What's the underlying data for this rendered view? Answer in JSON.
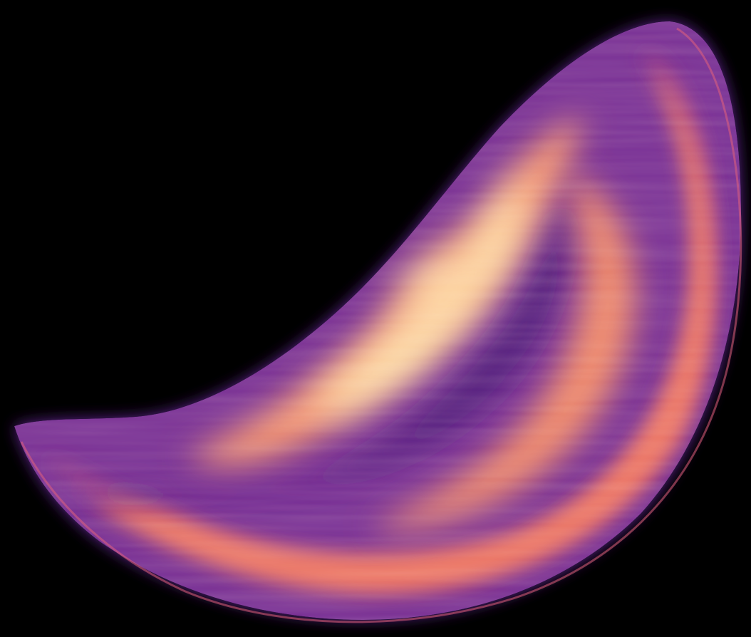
{
  "image": {
    "subject": "strange-attractor-density-render",
    "colors": {
      "background": "#000000",
      "deep_purple": "#2a0a4a",
      "violet": "#6a2a9a",
      "magenta": "#b8407a",
      "coral": "#f07060",
      "salmon": "#f89070",
      "peach": "#fcc090",
      "pale_yellow": "#fff5c0"
    }
  }
}
